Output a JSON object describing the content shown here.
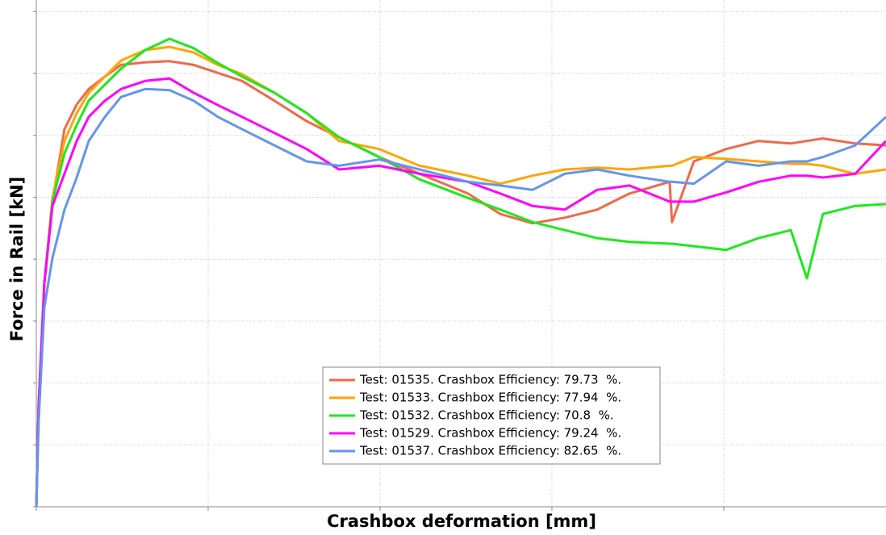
{
  "chart_data": {
    "type": "line",
    "xlabel": "Crashbox deformation [mm]",
    "ylabel": "Force in Rail [kN]",
    "xlim": [
      0,
      49.44
    ],
    "ylim": [
      0,
      80
    ],
    "xticks": [
      0,
      10,
      20,
      30,
      40
    ],
    "yticks": [
      0,
      10,
      20,
      30,
      40,
      50,
      60,
      70,
      80
    ],
    "grid": true,
    "legend": "lower center",
    "x": [
      0,
      0.14,
      0.47,
      0.94,
      1.64,
      2.35,
      3.05,
      3.99,
      4.93,
      6.34,
      7.75,
      9.15,
      10.56,
      11.97,
      13.85,
      15.73,
      17.61,
      19.95,
      22.3,
      25.12,
      27.0,
      28.87,
      30.75,
      32.63,
      34.51,
      36.85,
      36.99,
      38.26,
      40.14,
      42.02,
      43.9,
      44.84,
      45.77,
      47.65,
      49.44
    ],
    "series": [
      {
        "name": "Test: 01535. Crashbox Efficiency: 79.73  %.",
        "color": "#f0694a",
        "values": [
          0,
          16.7,
          36.2,
          49.3,
          61.0,
          65.0,
          67.5,
          69.5,
          71.4,
          71.8,
          72.0,
          71.4,
          70.1,
          68.8,
          65.6,
          62.3,
          59.7,
          56.5,
          53.8,
          50.6,
          47.3,
          45.8,
          46.7,
          48.0,
          50.6,
          52.5,
          46.0,
          55.8,
          57.8,
          59.1,
          58.7,
          59.1,
          59.5,
          58.7,
          58.4
        ]
      },
      {
        "name": "Test: 01533. Crashbox Efficiency: 77.94  %.",
        "color": "#ffa500",
        "values": [
          0,
          16.7,
          36.2,
          49.9,
          59.1,
          63.6,
          66.9,
          69.5,
          72.1,
          73.8,
          74.3,
          73.4,
          71.4,
          69.9,
          66.9,
          63.6,
          59.1,
          57.8,
          55.1,
          53.5,
          52.2,
          53.5,
          54.5,
          54.8,
          54.5,
          55.1,
          55.1,
          56.5,
          56.2,
          55.8,
          55.4,
          55.4,
          55.1,
          53.8,
          54.5
        ]
      },
      {
        "name": "Test: 01532. Crashbox Efficiency: 70.8  %.",
        "color": "#1ee81e",
        "values": [
          0,
          16.7,
          36.2,
          49.3,
          57.1,
          61.7,
          65.6,
          68.2,
          70.8,
          73.8,
          75.6,
          74.1,
          71.7,
          69.5,
          66.9,
          63.6,
          59.7,
          56.5,
          52.9,
          49.9,
          48.0,
          46.0,
          44.7,
          43.4,
          42.8,
          42.5,
          42.5,
          42.1,
          41.5,
          43.4,
          44.7,
          36.9,
          47.3,
          48.6,
          48.9
        ]
      },
      {
        "name": "Test: 01529. Crashbox Efficiency: 79.24  %.",
        "color": "#ff00ff",
        "values": [
          0,
          16.7,
          36.2,
          48.6,
          53.8,
          59.1,
          63.0,
          65.6,
          67.5,
          68.8,
          69.2,
          66.9,
          64.9,
          63.0,
          60.4,
          57.8,
          54.5,
          55.1,
          53.8,
          52.5,
          50.6,
          48.6,
          48.0,
          51.2,
          51.9,
          49.3,
          49.3,
          49.3,
          50.8,
          52.5,
          53.5,
          53.5,
          53.2,
          53.8,
          59.1
        ]
      },
      {
        "name": "Test: 01537. Crashbox Efficiency: 82.65  %.",
        "color": "#6495ed",
        "values": [
          0,
          14.1,
          32.3,
          40.2,
          48.0,
          53.2,
          59.1,
          63.0,
          66.2,
          67.5,
          67.3,
          65.6,
          63.0,
          61.0,
          58.4,
          55.8,
          55.1,
          56.1,
          54.5,
          52.5,
          51.9,
          51.2,
          53.8,
          54.5,
          53.5,
          52.5,
          52.5,
          52.2,
          55.8,
          55.1,
          55.8,
          55.8,
          56.5,
          58.4,
          63.0
        ]
      }
    ]
  }
}
